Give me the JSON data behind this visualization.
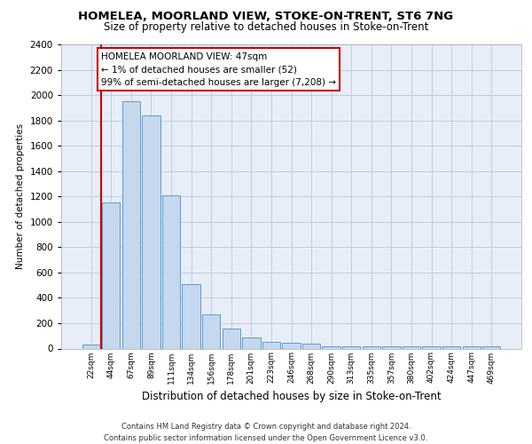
{
  "title": "HOMELEA, MOORLAND VIEW, STOKE-ON-TRENT, ST6 7NG",
  "subtitle": "Size of property relative to detached houses in Stoke-on-Trent",
  "xlabel": "Distribution of detached houses by size in Stoke-on-Trent",
  "ylabel": "Number of detached properties",
  "categories": [
    "22sqm",
    "44sqm",
    "67sqm",
    "89sqm",
    "111sqm",
    "134sqm",
    "156sqm",
    "178sqm",
    "201sqm",
    "223sqm",
    "246sqm",
    "268sqm",
    "290sqm",
    "313sqm",
    "335sqm",
    "357sqm",
    "380sqm",
    "402sqm",
    "424sqm",
    "447sqm",
    "469sqm"
  ],
  "values": [
    30,
    1150,
    1950,
    1840,
    1210,
    510,
    270,
    160,
    85,
    50,
    45,
    40,
    20,
    20,
    15,
    20,
    20,
    20,
    20,
    20,
    20
  ],
  "bar_color": "#c5d8ee",
  "bar_edge_color": "#5b9bd5",
  "vline_color": "#cc0000",
  "vline_x": 0.5,
  "annotation_text_line1": "HOMELEA MOORLAND VIEW: 47sqm",
  "annotation_text_line2": "← 1% of detached houses are smaller (52)",
  "annotation_text_line3": "99% of semi-detached houses are larger (7,208) →",
  "ylim": [
    0,
    2400
  ],
  "yticks": [
    0,
    200,
    400,
    600,
    800,
    1000,
    1200,
    1400,
    1600,
    1800,
    2000,
    2200,
    2400
  ],
  "footer_line1": "Contains HM Land Registry data © Crown copyright and database right 2024.",
  "footer_line2": "Contains public sector information licensed under the Open Government Licence v3.0.",
  "plot_bg_color": "#e8eef8",
  "title_fontsize": 9.5,
  "subtitle_fontsize": 8.5,
  "xlabel_fontsize": 8.5,
  "ylabel_fontsize": 7.5,
  "tick_fontsize": 7.5,
  "xtick_fontsize": 6.5,
  "annot_fontsize": 7.5,
  "footer_fontsize": 6.0
}
